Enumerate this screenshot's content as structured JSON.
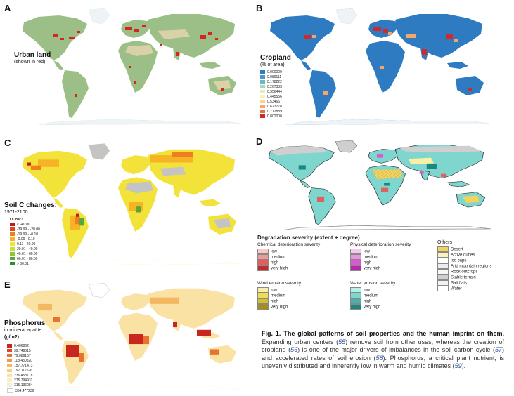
{
  "panels": {
    "A": {
      "letter": "A",
      "title": "Urban land",
      "subtitle": "(shown in red)"
    },
    "B": {
      "letter": "B",
      "title": "Cropland",
      "subtitle": "(% of area)",
      "legend": [
        "0.000000",
        "0.089111",
        "0.178222",
        "0.267333",
        "0.356444",
        "0.445556",
        "0.534667",
        "0.623778",
        "0.712889",
        "0.802000"
      ],
      "legend_colors": [
        "#2e7bc2",
        "#4a9bc9",
        "#6fb7c4",
        "#a9d6bc",
        "#dcefc0",
        "#f7f3b8",
        "#f9d48e",
        "#f5a66a",
        "#ea6e4a",
        "#d1282a"
      ]
    },
    "C": {
      "letter": "C",
      "title": "Soil C changes:",
      "subtitle": "1971-2100",
      "unit": "t C ha⁻¹",
      "legend": [
        "< -40.00",
        "-39.99 - -20.00",
        "-19.99 - -0.10",
        "-0.09 - 0.10",
        "0.11 - 20.00",
        "20.01 - 40.00",
        "40.01 - 60.00",
        "60.01 - 80.00",
        "> 80.01"
      ],
      "legend_colors": [
        "#c21d1d",
        "#e0451f",
        "#f07e20",
        "#f6b325",
        "#f3e23a",
        "#c8dd3f",
        "#8ec43d",
        "#57a83a",
        "#2f8b2f"
      ]
    },
    "D": {
      "letter": "D",
      "legend_title": "Degradation severity (extent + degree)",
      "groups": [
        {
          "title": "Chemical deterioration severity",
          "items": [
            "low",
            "medium",
            "high",
            "very high"
          ],
          "colors": [
            "#f7c9c9",
            "#ef9a9a",
            "#e06060",
            "#c12d2d"
          ]
        },
        {
          "title": "Physical deterioration severity",
          "items": [
            "low",
            "medium",
            "high",
            "very high"
          ],
          "colors": [
            "#f5c9ef",
            "#ea95e0",
            "#d95ad0",
            "#b42aa8"
          ]
        },
        {
          "title": "Wind erosion severity",
          "items": [
            "low",
            "medium",
            "high",
            "very high"
          ],
          "colors": [
            "#f8f0a8",
            "#eedb5a",
            "#d5bf2a",
            "#a88f12"
          ]
        },
        {
          "title": "Water erosion severity",
          "items": [
            "low",
            "medium",
            "high",
            "very high"
          ],
          "colors": [
            "#b7efe9",
            "#7fd6cf",
            "#43b3ab",
            "#1d8680"
          ]
        },
        {
          "title": "Others",
          "items": [
            "Desert",
            "Active dunes",
            "Ice caps",
            "Arid mountain regions",
            "Rock outcrops",
            "Stable terrain",
            "Salt flats",
            "Water"
          ],
          "colors": [
            "#f4d35a",
            "#fbf2c0",
            "#ffffff",
            "#ececec",
            "#f7f7f7",
            "#cfcfcf",
            "#f2f2f2",
            "#ffffff"
          ]
        }
      ]
    },
    "E": {
      "letter": "E",
      "title": "Phosphorus",
      "subtitle": "in mineral apatite",
      "unit": "(g/m2)",
      "legend": [
        "0.406862",
        "39.749015",
        "79.089167",
        "118.430320",
        "157.771473",
        "197.112626",
        "236.453778",
        "275.794931",
        "315.136084",
        "354.477236"
      ],
      "legend_colors": [
        "#c8261f",
        "#d94a22",
        "#e67330",
        "#ef9a45",
        "#f4b862",
        "#f7d083",
        "#f9e2a4",
        "#fbeec2",
        "#f2f2dc",
        "#ffffff"
      ]
    }
  },
  "caption": {
    "bold": "Fig. 1. The global patterns of soil properties and the human imprint on them.",
    "text_1": " Expanding urban centers (",
    "ref_1": "55",
    "text_2": ") remove soil from other uses, whereas the creation of cropland (",
    "ref_2": "56",
    "text_3": ") is one of the major drivers of imbalances in the soil carbon cycle (",
    "ref_3": "57",
    "text_4": ") and accelerated rates of soil erosion (",
    "ref_4": "58",
    "text_5": "). Phosphorus, a critical plant nutrient, is unevenly distributed and inherently low in warm and humid climates (",
    "ref_5": "59",
    "text_6": ")."
  }
}
